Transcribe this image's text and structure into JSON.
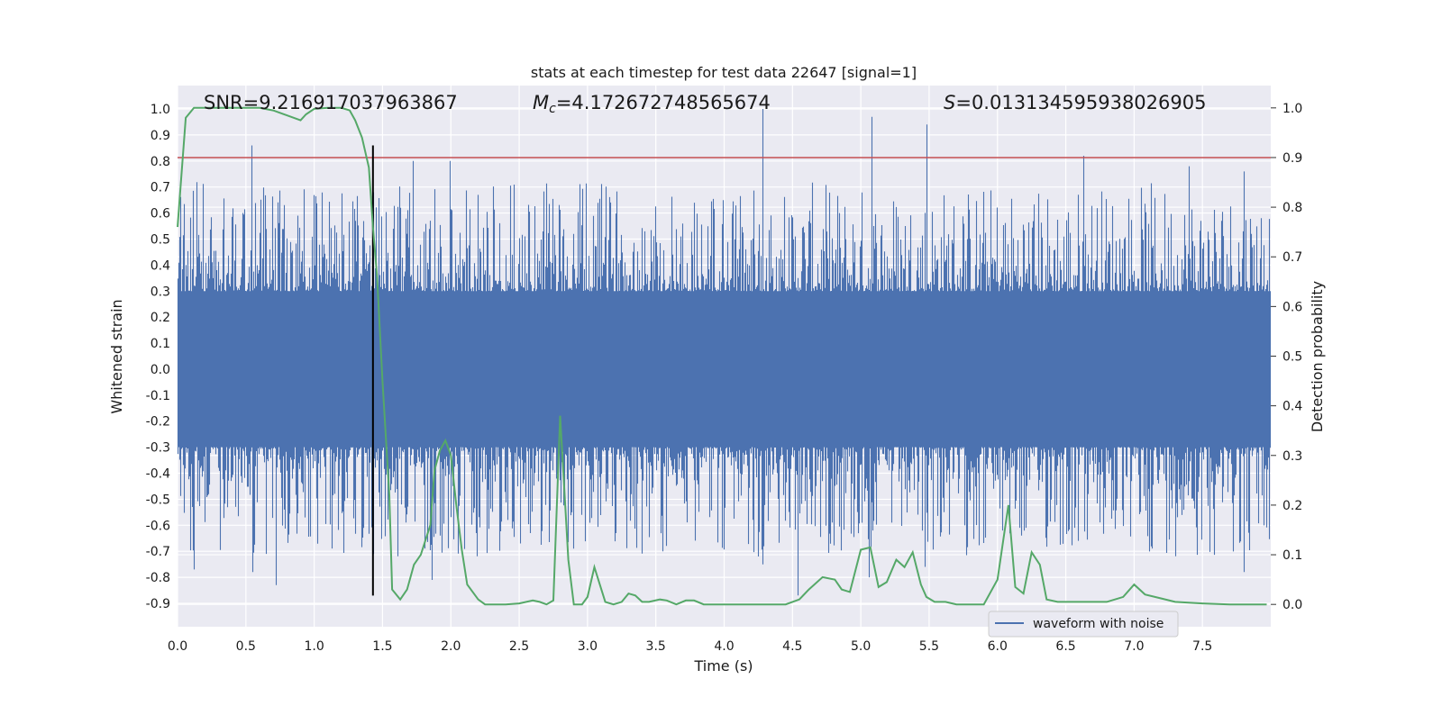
{
  "chart_data": {
    "type": "line",
    "title": "stats at each timestep for test data 22647 [signal=1]",
    "xlabel": "Time (s)",
    "ylabel": "Whitened strain",
    "y2label": "Detection probability",
    "xlim": [
      0.0,
      8.0
    ],
    "ylim": [
      -0.99,
      1.09
    ],
    "y2lim": [
      -0.045,
      1.045
    ],
    "xticks": [
      "0.0",
      "0.5",
      "1.0",
      "1.5",
      "2.0",
      "2.5",
      "3.0",
      "3.5",
      "4.0",
      "4.5",
      "5.0",
      "5.5",
      "6.0",
      "6.5",
      "7.0",
      "7.5"
    ],
    "yticks": [
      "1.0",
      "0.9",
      "0.8",
      "0.7",
      "0.6",
      "0.5",
      "0.4",
      "0.3",
      "0.2",
      "0.1",
      "0.0",
      "-0.1",
      "-0.2",
      "-0.3",
      "-0.4",
      "-0.5",
      "-0.6",
      "-0.7",
      "-0.8",
      "-0.9"
    ],
    "y2ticks": [
      "1.0",
      "0.9",
      "0.8",
      "0.7",
      "0.6",
      "0.5",
      "0.4",
      "0.3",
      "0.2",
      "0.1",
      "0.0"
    ],
    "grid": true,
    "legend": {
      "position": "lower-center-right",
      "entries": [
        "waveform with noise"
      ]
    },
    "annotations": {
      "snr": "SNR=9.216917037963867",
      "mc_symbol": "M",
      "mc_sub": "c",
      "mc_value": "=4.172672748565674",
      "s_symbol": "S",
      "s_value": "=0.013134595938026905"
    },
    "series": [
      {
        "name": "waveform with noise",
        "color": "#4c72b0",
        "axis": "left",
        "style": "dense noisy strain between about -0.35 and 0.35 with spikes",
        "envelope_typical": [
          -0.35,
          0.35
        ],
        "spikes": [
          {
            "t": 0.54,
            "v": 0.86
          },
          {
            "t": 0.55,
            "v": -0.78
          },
          {
            "t": 0.12,
            "v": -0.77
          },
          {
            "t": 0.72,
            "v": -0.83
          },
          {
            "t": 1.43,
            "v": 0.68
          },
          {
            "t": 1.43,
            "v": -0.71
          },
          {
            "t": 1.72,
            "v": 0.8
          },
          {
            "t": 1.86,
            "v": -0.81
          },
          {
            "t": 1.99,
            "v": 0.8
          },
          {
            "t": 4.28,
            "v": 1.0
          },
          {
            "t": 4.28,
            "v": -0.75
          },
          {
            "t": 4.54,
            "v": -0.87
          },
          {
            "t": 5.08,
            "v": 0.97
          },
          {
            "t": 5.06,
            "v": -0.8
          },
          {
            "t": 5.48,
            "v": 0.94
          },
          {
            "t": 5.47,
            "v": -0.76
          },
          {
            "t": 6.63,
            "v": 0.82
          },
          {
            "t": 7.4,
            "v": 0.78
          },
          {
            "t": 7.8,
            "v": 0.76
          },
          {
            "t": 7.8,
            "v": -0.78
          }
        ]
      },
      {
        "name": "",
        "color": "#55a868",
        "axis": "right",
        "x": [
          0.0,
          0.06,
          0.12,
          0.2,
          0.3,
          0.4,
          0.5,
          0.6,
          0.7,
          0.8,
          0.9,
          0.94,
          1.0,
          1.1,
          1.2,
          1.26,
          1.3,
          1.35,
          1.4,
          1.43,
          1.46,
          1.5,
          1.55,
          1.57,
          1.63,
          1.68,
          1.73,
          1.78,
          1.85,
          1.88,
          1.92,
          1.96,
          2.0,
          2.04,
          2.08,
          2.12,
          2.2,
          2.25,
          2.3,
          2.4,
          2.5,
          2.6,
          2.65,
          2.7,
          2.75,
          2.8,
          2.86,
          2.9,
          2.96,
          3.0,
          3.05,
          3.13,
          3.19,
          3.25,
          3.3,
          3.35,
          3.4,
          3.45,
          3.53,
          3.58,
          3.65,
          3.72,
          3.78,
          3.85,
          3.92,
          3.97,
          4.05,
          4.15,
          4.25,
          4.35,
          4.45,
          4.55,
          4.62,
          4.72,
          4.81,
          4.86,
          4.92,
          5.0,
          5.07,
          5.13,
          5.19,
          5.26,
          5.32,
          5.38,
          5.44,
          5.48,
          5.54,
          5.62,
          5.7,
          5.8,
          5.9,
          6.0,
          6.08,
          6.13,
          6.19,
          6.25,
          6.31,
          6.36,
          6.44,
          6.53,
          6.6,
          6.7,
          6.8,
          6.92,
          7.0,
          7.08,
          7.2,
          7.3,
          7.5,
          7.7,
          7.97
        ],
        "y": [
          0.76,
          0.98,
          1.0,
          1.0,
          1.0,
          1.0,
          1.0,
          1.0,
          0.995,
          0.985,
          0.975,
          0.987,
          0.998,
          1.0,
          1.0,
          0.995,
          0.975,
          0.94,
          0.88,
          0.76,
          0.66,
          0.45,
          0.22,
          0.03,
          0.01,
          0.03,
          0.08,
          0.1,
          0.16,
          0.27,
          0.31,
          0.33,
          0.3,
          0.2,
          0.11,
          0.04,
          0.01,
          0.0,
          0.0,
          0.0,
          0.002,
          0.008,
          0.005,
          0.0,
          0.008,
          0.38,
          0.09,
          0.0,
          0.0,
          0.015,
          0.075,
          0.005,
          0.0,
          0.005,
          0.022,
          0.018,
          0.005,
          0.005,
          0.01,
          0.008,
          0.0,
          0.008,
          0.008,
          0.0,
          0.0,
          0.0,
          0.0,
          0.0,
          0.0,
          0.0,
          0.0,
          0.01,
          0.03,
          0.055,
          0.05,
          0.03,
          0.025,
          0.11,
          0.115,
          0.035,
          0.045,
          0.09,
          0.075,
          0.105,
          0.04,
          0.015,
          0.005,
          0.005,
          0.0,
          0.0,
          0.0,
          0.05,
          0.2,
          0.035,
          0.022,
          0.105,
          0.08,
          0.01,
          0.005,
          0.005,
          0.005,
          0.005,
          0.005,
          0.015,
          0.04,
          0.02,
          0.012,
          0.005,
          0.002,
          0.0,
          0.0
        ]
      }
    ],
    "reference_lines": [
      {
        "type": "horizontal",
        "axis": "right",
        "y": 0.9,
        "color": "#c44e52"
      },
      {
        "type": "vertical",
        "x": 1.43,
        "y_from": 0.86,
        "y_to": -0.87,
        "color": "#000000"
      }
    ]
  }
}
